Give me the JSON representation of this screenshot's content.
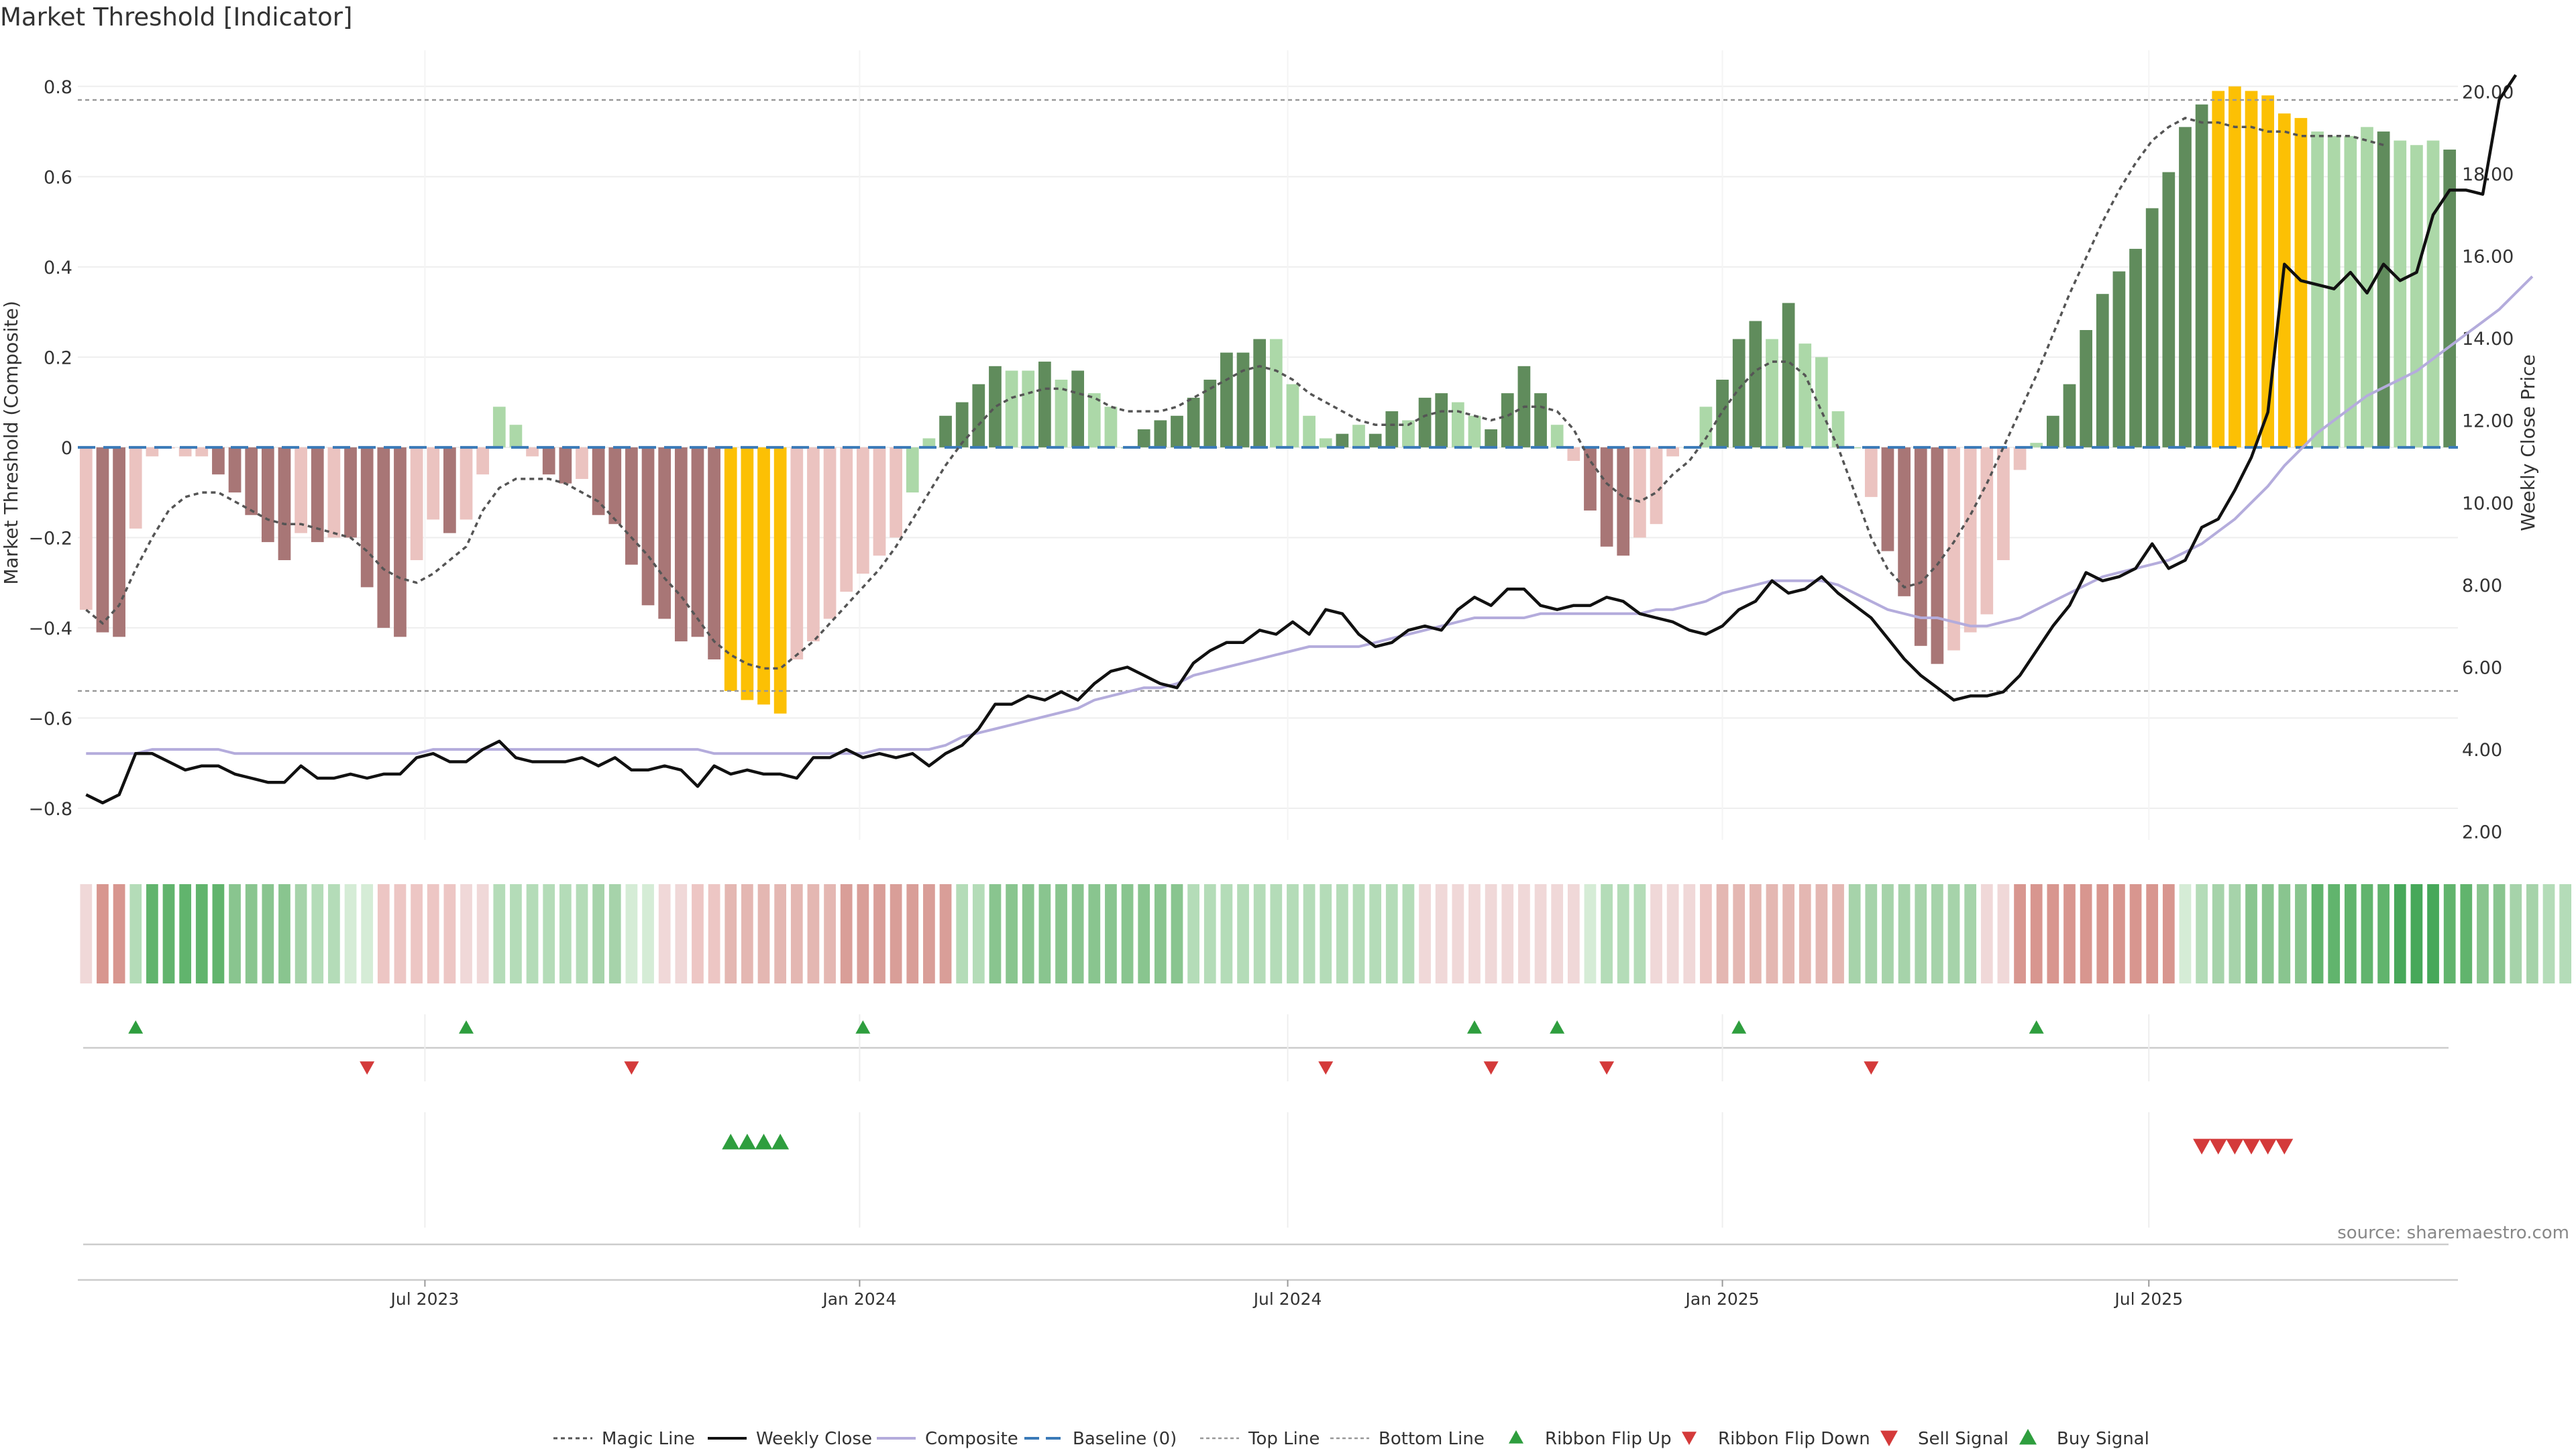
{
  "chart_data": {
    "type": "bar",
    "title": "Market Threshold [Indicator]",
    "ylabel_left": "Market Threshold (Composite)",
    "ylabel_right": "Weekly Close Price",
    "source": "source: sharemaestro.com",
    "ylim_left": [
      -0.87,
      0.88
    ],
    "ylim_right": [
      1.8,
      21.0
    ],
    "yticks_left": [
      0.8,
      0.6,
      0.4,
      0.2,
      0,
      -0.2,
      -0.4,
      -0.6,
      -0.8
    ],
    "ytick_labels_left": [
      "0.8",
      "0.6",
      "0.4",
      "0.2",
      "0",
      "−0.2",
      "−0.4",
      "−0.6",
      "−0.8"
    ],
    "yticks_right": [
      20,
      18,
      16,
      14,
      12,
      10,
      8,
      6,
      4,
      2
    ],
    "ytick_labels_right": [
      "20.00",
      "18.00",
      "16.00",
      "14.00",
      "12.00",
      "10.00",
      "8.00",
      "6.00",
      "4.00",
      "2.00"
    ],
    "x_ticks": [
      {
        "week": 20.5,
        "label": "Jul 2023"
      },
      {
        "week": 46.8,
        "label": "Jan 2024"
      },
      {
        "week": 72.7,
        "label": "Jul 2024"
      },
      {
        "week": 99.0,
        "label": "Jan 2025"
      },
      {
        "week": 124.8,
        "label": "Jul 2025"
      }
    ],
    "top_line": 0.77,
    "bottom_line": -0.54,
    "composite_bars": [
      -0.36,
      -0.41,
      -0.42,
      -0.18,
      -0.02,
      0,
      -0.02,
      -0.02,
      -0.06,
      -0.1,
      -0.15,
      -0.21,
      -0.25,
      -0.19,
      -0.21,
      -0.2,
      -0.2,
      -0.31,
      -0.4,
      -0.42,
      -0.25,
      -0.16,
      -0.19,
      -0.16,
      -0.06,
      0.09,
      0.05,
      -0.02,
      -0.06,
      -0.08,
      -0.07,
      -0.15,
      -0.17,
      -0.26,
      -0.35,
      -0.38,
      -0.43,
      -0.42,
      -0.47,
      -0.54,
      -0.56,
      -0.57,
      -0.59,
      -0.47,
      -0.43,
      -0.38,
      -0.32,
      -0.28,
      -0.24,
      -0.2,
      -0.1,
      0.02,
      0.07,
      0.1,
      0.14,
      0.18,
      0.17,
      0.17,
      0.19,
      0.15,
      0.17,
      0.12,
      0.09,
      0,
      0.04,
      0.06,
      0.07,
      0.11,
      0.15,
      0.21,
      0.21,
      0.24,
      0.24,
      0.14,
      0.07,
      0.02,
      0.03,
      0.05,
      0.03,
      0.08,
      0.06,
      0.11,
      0.12,
      0.1,
      0.07,
      0.04,
      0.12,
      0.18,
      0.12,
      0.05,
      -0.03,
      -0.14,
      -0.22,
      -0.24,
      -0.2,
      -0.17,
      -0.02,
      0,
      0.09,
      0.15,
      0.24,
      0.28,
      0.24,
      0.32,
      0.23,
      0.2,
      0.08,
      0,
      -0.11,
      -0.23,
      -0.33,
      -0.44,
      -0.48,
      -0.45,
      -0.41,
      -0.37,
      -0.25,
      -0.05,
      0.01,
      0.07,
      0.14,
      0.26,
      0.34,
      0.39,
      0.44,
      0.53,
      0.61,
      0.71,
      0.76,
      0.79,
      0.8,
      0.79,
      0.78,
      0.74,
      0.73,
      0.7,
      0.69,
      0.69,
      0.71,
      0.7,
      0.68,
      0.67,
      0.68,
      0.66
    ],
    "bar_colors": [
      "#ebc3c0",
      "#a87676",
      "#a87676",
      "#ebc3c0",
      "#ebc3c0",
      "#ebc3c0",
      "#ebc3c0",
      "#ebc3c0",
      "#a87676",
      "#a87676",
      "#a87676",
      "#a87676",
      "#a87676",
      "#ebc3c0",
      "#a87676",
      "#ebc3c0",
      "#a87676",
      "#a87676",
      "#a87676",
      "#a87676",
      "#ebc3c0",
      "#ebc3c0",
      "#a87676",
      "#ebc3c0",
      "#ebc3c0",
      "#acd8a8",
      "#acd8a8",
      "#ebc3c0",
      "#a87676",
      "#a87676",
      "#ebc3c0",
      "#a87676",
      "#a87676",
      "#a87676",
      "#a87676",
      "#a87676",
      "#a87676",
      "#a87676",
      "#a87676",
      "#fcc004",
      "#fcc004",
      "#fcc004",
      "#fcc004",
      "#ebc3c0",
      "#ebc3c0",
      "#ebc3c0",
      "#ebc3c0",
      "#ebc3c0",
      "#ebc3c0",
      "#ebc3c0",
      "#acd8a8",
      "#acd8a8",
      "#608c5c",
      "#608c5c",
      "#608c5c",
      "#608c5c",
      "#acd8a8",
      "#acd8a8",
      "#608c5c",
      "#acd8a8",
      "#608c5c",
      "#acd8a8",
      "#acd8a8",
      "#acd8a8",
      "#608c5c",
      "#608c5c",
      "#608c5c",
      "#608c5c",
      "#608c5c",
      "#608c5c",
      "#608c5c",
      "#608c5c",
      "#acd8a8",
      "#acd8a8",
      "#acd8a8",
      "#acd8a8",
      "#608c5c",
      "#acd8a8",
      "#608c5c",
      "#608c5c",
      "#acd8a8",
      "#608c5c",
      "#608c5c",
      "#acd8a8",
      "#acd8a8",
      "#608c5c",
      "#608c5c",
      "#608c5c",
      "#608c5c",
      "#acd8a8",
      "#ebc3c0",
      "#a87676",
      "#a87676",
      "#a87676",
      "#ebc3c0",
      "#ebc3c0",
      "#ebc3c0",
      "#acd8a8",
      "#acd8a8",
      "#608c5c",
      "#608c5c",
      "#608c5c",
      "#acd8a8",
      "#608c5c",
      "#acd8a8",
      "#acd8a8",
      "#acd8a8",
      "#acd8a8",
      "#ebc3c0",
      "#a87676",
      "#a87676",
      "#a87676",
      "#a87676",
      "#ebc3c0",
      "#ebc3c0",
      "#ebc3c0",
      "#ebc3c0",
      "#ebc3c0",
      "#acd8a8",
      "#608c5c",
      "#608c5c",
      "#608c5c",
      "#608c5c",
      "#608c5c",
      "#608c5c",
      "#608c5c",
      "#608c5c",
      "#608c5c",
      "#608c5c",
      "#fcc004",
      "#fcc004",
      "#fcc004",
      "#fcc004",
      "#fcc004",
      "#fcc004",
      "#acd8a8",
      "#acd8a8",
      "#acd8a8",
      "#acd8a8",
      "#608c5c",
      "#acd8a8",
      "#acd8a8",
      "#acd8a8",
      "#608c5c",
      "#608c5c",
      "#acd8a8"
    ],
    "magic_line": [
      -0.36,
      -0.39,
      -0.35,
      -0.27,
      -0.2,
      -0.14,
      -0.11,
      -0.1,
      -0.1,
      -0.12,
      -0.14,
      -0.16,
      -0.17,
      -0.17,
      -0.18,
      -0.19,
      -0.2,
      -0.23,
      -0.27,
      -0.29,
      -0.3,
      -0.28,
      -0.25,
      -0.22,
      -0.14,
      -0.09,
      -0.07,
      -0.07,
      -0.07,
      -0.08,
      -0.1,
      -0.12,
      -0.16,
      -0.2,
      -0.24,
      -0.29,
      -0.33,
      -0.38,
      -0.43,
      -0.46,
      -0.48,
      -0.49,
      -0.49,
      -0.46,
      -0.43,
      -0.39,
      -0.35,
      -0.31,
      -0.27,
      -0.22,
      -0.16,
      -0.1,
      -0.04,
      0.01,
      0.05,
      0.09,
      0.11,
      0.12,
      0.13,
      0.13,
      0.12,
      0.11,
      0.09,
      0.08,
      0.08,
      0.08,
      0.09,
      0.11,
      0.13,
      0.15,
      0.17,
      0.18,
      0.17,
      0.15,
      0.12,
      0.1,
      0.08,
      0.06,
      0.05,
      0.05,
      0.05,
      0.07,
      0.08,
      0.08,
      0.07,
      0.06,
      0.07,
      0.09,
      0.09,
      0.08,
      0.04,
      -0.03,
      -0.08,
      -0.11,
      -0.12,
      -0.1,
      -0.06,
      -0.03,
      0.02,
      0.08,
      0.13,
      0.17,
      0.19,
      0.19,
      0.16,
      0.08,
      0,
      -0.1,
      -0.2,
      -0.27,
      -0.31,
      -0.3,
      -0.26,
      -0.21,
      -0.15,
      -0.08,
      0,
      0.08,
      0.16,
      0.25,
      0.34,
      0.42,
      0.5,
      0.57,
      0.63,
      0.68,
      0.71,
      0.73,
      0.72,
      0.72,
      0.71,
      0.71,
      0.7,
      0.7,
      0.69,
      0.69,
      0.69,
      0.69,
      0.68,
      0.67
    ],
    "weekly_close": [
      2.9,
      2.7,
      2.9,
      3.9,
      3.9,
      3.7,
      3.5,
      3.6,
      3.6,
      3.4,
      3.3,
      3.2,
      3.2,
      3.6,
      3.3,
      3.3,
      3.4,
      3.3,
      3.4,
      3.4,
      3.8,
      3.9,
      3.7,
      3.7,
      4.0,
      4.2,
      3.8,
      3.7,
      3.7,
      3.7,
      3.8,
      3.6,
      3.8,
      3.5,
      3.5,
      3.6,
      3.5,
      3.1,
      3.6,
      3.4,
      3.5,
      3.4,
      3.4,
      3.3,
      3.8,
      3.8,
      4.0,
      3.8,
      3.9,
      3.8,
      3.9,
      3.6,
      3.9,
      4.1,
      4.5,
      5.1,
      5.1,
      5.3,
      5.2,
      5.4,
      5.2,
      5.6,
      5.9,
      6.0,
      5.8,
      5.6,
      5.5,
      6.1,
      6.4,
      6.6,
      6.6,
      6.9,
      6.8,
      7.1,
      6.8,
      7.4,
      7.3,
      6.8,
      6.5,
      6.6,
      6.9,
      7.0,
      6.9,
      7.4,
      7.7,
      7.5,
      7.9,
      7.9,
      7.5,
      7.4,
      7.5,
      7.5,
      7.7,
      7.6,
      7.3,
      7.2,
      7.1,
      6.9,
      6.8,
      7.0,
      7.4,
      7.6,
      8.1,
      7.8,
      7.9,
      8.2,
      7.8,
      7.5,
      7.2,
      6.7,
      6.2,
      5.8,
      5.5,
      5.2,
      5.3,
      5.3,
      5.4,
      5.8,
      6.4,
      7.0,
      7.5,
      8.3,
      8.1,
      8.2,
      8.4,
      9.0,
      8.4,
      8.6,
      9.4,
      9.6,
      10.3,
      11.1,
      12.2,
      15.8,
      15.4,
      15.3,
      15.2,
      15.6,
      15.1,
      15.8,
      15.4,
      15.6,
      17.0,
      17.6,
      17.6,
      17.5,
      19.8,
      20.4
    ],
    "composite_line": [
      3.9,
      3.9,
      3.9,
      3.9,
      4.0,
      4.0,
      4.0,
      4.0,
      4.0,
      3.9,
      3.9,
      3.9,
      3.9,
      3.9,
      3.9,
      3.9,
      3.9,
      3.9,
      3.9,
      3.9,
      3.9,
      4.0,
      4.0,
      4.0,
      4.0,
      4.0,
      4.0,
      4.0,
      4.0,
      4.0,
      4.0,
      4.0,
      4.0,
      4.0,
      4.0,
      4.0,
      4.0,
      4.0,
      3.9,
      3.9,
      3.9,
      3.9,
      3.9,
      3.9,
      3.9,
      3.9,
      3.9,
      3.9,
      4.0,
      4.0,
      4.0,
      4.0,
      4.1,
      4.3,
      4.4,
      4.5,
      4.6,
      4.7,
      4.8,
      4.9,
      5.0,
      5.2,
      5.3,
      5.4,
      5.5,
      5.5,
      5.6,
      5.8,
      5.9,
      6.0,
      6.1,
      6.2,
      6.3,
      6.4,
      6.5,
      6.5,
      6.5,
      6.5,
      6.6,
      6.7,
      6.8,
      6.9,
      7.0,
      7.1,
      7.2,
      7.2,
      7.2,
      7.2,
      7.3,
      7.3,
      7.3,
      7.3,
      7.3,
      7.3,
      7.3,
      7.4,
      7.4,
      7.5,
      7.6,
      7.8,
      7.9,
      8.0,
      8.1,
      8.1,
      8.1,
      8.1,
      8.0,
      7.8,
      7.6,
      7.4,
      7.3,
      7.2,
      7.2,
      7.1,
      7.0,
      7.0,
      7.1,
      7.2,
      7.4,
      7.6,
      7.8,
      8.0,
      8.2,
      8.3,
      8.4,
      8.5,
      8.6,
      8.8,
      9.0,
      9.3,
      9.6,
      10.0,
      10.4,
      10.9,
      11.3,
      11.7,
      12.0,
      12.3,
      12.6,
      12.8,
      13.0,
      13.2,
      13.5,
      13.8,
      14.1,
      14.4,
      14.7,
      15.1,
      15.5
    ],
    "ribbon_colors": [
      "#f0d8d8",
      "#d8968f",
      "#d8968f",
      "#b4dcb8",
      "#61b46d",
      "#61b46d",
      "#61b46d",
      "#61b46d",
      "#61b46d",
      "#89c58f",
      "#89c58f",
      "#89c58f",
      "#89c58f",
      "#a6d3aa",
      "#b4dcb8",
      "#b4dcb8",
      "#d5ecd6",
      "#d5ecd6",
      "#edc6c4",
      "#edc6c4",
      "#edc6c4",
      "#edc6c4",
      "#edc6c4",
      "#f0d8d8",
      "#f0d8d8",
      "#b4dcb8",
      "#b4dcb8",
      "#b4dcb8",
      "#b4dcb8",
      "#b4dcb8",
      "#b4dcb8",
      "#a6d3aa",
      "#a6d3aa",
      "#d5ecd6",
      "#d5ecd6",
      "#f0d8d8",
      "#f0d8d8",
      "#edc6c4",
      "#edc6c4",
      "#e4b7b2",
      "#e4b7b2",
      "#e4b7b2",
      "#e4b7b2",
      "#e4b7b2",
      "#e4b7b2",
      "#e4b7b2",
      "#d99e98",
      "#d99e98",
      "#d99e98",
      "#d99e98",
      "#d99e98",
      "#d99e98",
      "#d99e98",
      "#b4dcb8",
      "#b4dcb8",
      "#89c58f",
      "#89c58f",
      "#89c58f",
      "#89c58f",
      "#89c58f",
      "#89c58f",
      "#89c58f",
      "#89c58f",
      "#89c58f",
      "#89c58f",
      "#89c58f",
      "#89c58f",
      "#b4dcb8",
      "#b4dcb8",
      "#b4dcb8",
      "#b4dcb8",
      "#b4dcb8",
      "#b4dcb8",
      "#b4dcb8",
      "#b4dcb8",
      "#b4dcb8",
      "#b4dcb8",
      "#b4dcb8",
      "#b4dcb8",
      "#b4dcb8",
      "#b4dcb8",
      "#f0d8d8",
      "#f0d8d8",
      "#f0d8d8",
      "#f0d8d8",
      "#f0d8d8",
      "#f0d8d8",
      "#f0d8d8",
      "#f0d8d8",
      "#f0d8d8",
      "#f0d8d8",
      "#d5ecd6",
      "#b4dcb8",
      "#b4dcb8",
      "#b4dcb8",
      "#f0d8d8",
      "#f0d8d8",
      "#f0d8d8",
      "#edc6c4",
      "#e4b7b2",
      "#e4b7b2",
      "#e4b7b2",
      "#e4b7b2",
      "#e4b7b2",
      "#e4b7b2",
      "#e4b7b2",
      "#e4b7b2",
      "#a6d3aa",
      "#a6d3aa",
      "#a6d3aa",
      "#a6d3aa",
      "#a6d3aa",
      "#a6d3aa",
      "#a6d3aa",
      "#a6d3aa",
      "#f0d8d8",
      "#f0d8d8",
      "#d8968f",
      "#d8968f",
      "#d8968f",
      "#d8968f",
      "#d8968f",
      "#d8968f",
      "#d8968f",
      "#d8968f",
      "#d8968f",
      "#d8968f",
      "#d5ecd6",
      "#b4dcb8",
      "#a6d3aa",
      "#a6d3aa",
      "#89c58f",
      "#89c58f",
      "#89c58f",
      "#89c58f",
      "#61b46d",
      "#61b46d",
      "#61b46d",
      "#61b46d",
      "#61b46d",
      "#47a85a",
      "#47a85a",
      "#47a85a",
      "#61b46d",
      "#61b46d",
      "#89c58f",
      "#89c58f",
      "#a6d3aa",
      "#a6d3aa",
      "#b4dcb8",
      "#b4dcb8"
    ],
    "ribbon_flip_up_weeks": [
      3,
      23,
      47,
      84,
      89,
      100,
      118
    ],
    "ribbon_flip_down_weeks": [
      17,
      33,
      75,
      85,
      92,
      108
    ],
    "buy_signal_weeks": [
      39,
      40,
      41,
      42
    ],
    "sell_signal_weeks": [
      128,
      129,
      130,
      131,
      132,
      133
    ],
    "legend": [
      {
        "key": "magic",
        "label": "Magic Line"
      },
      {
        "key": "close",
        "label": "Weekly Close"
      },
      {
        "key": "composite",
        "label": "Composite"
      },
      {
        "key": "baseline",
        "label": "Baseline (0)"
      },
      {
        "key": "top",
        "label": "Top Line"
      },
      {
        "key": "bottom",
        "label": "Bottom Line"
      },
      {
        "key": "flip_up",
        "label": "Ribbon Flip Up"
      },
      {
        "key": "flip_down",
        "label": "Ribbon Flip Down"
      },
      {
        "key": "sell",
        "label": "Sell Signal"
      },
      {
        "key": "buy",
        "label": "Buy Signal"
      }
    ],
    "legend_position": "bottom-center",
    "colors": {
      "magic": "#555555",
      "close": "#111111",
      "composite": "#b4acdc",
      "baseline": "#3a7ab8",
      "guide": "#999999",
      "buy": "#2e9e3e",
      "sell": "#d43a3a"
    }
  }
}
